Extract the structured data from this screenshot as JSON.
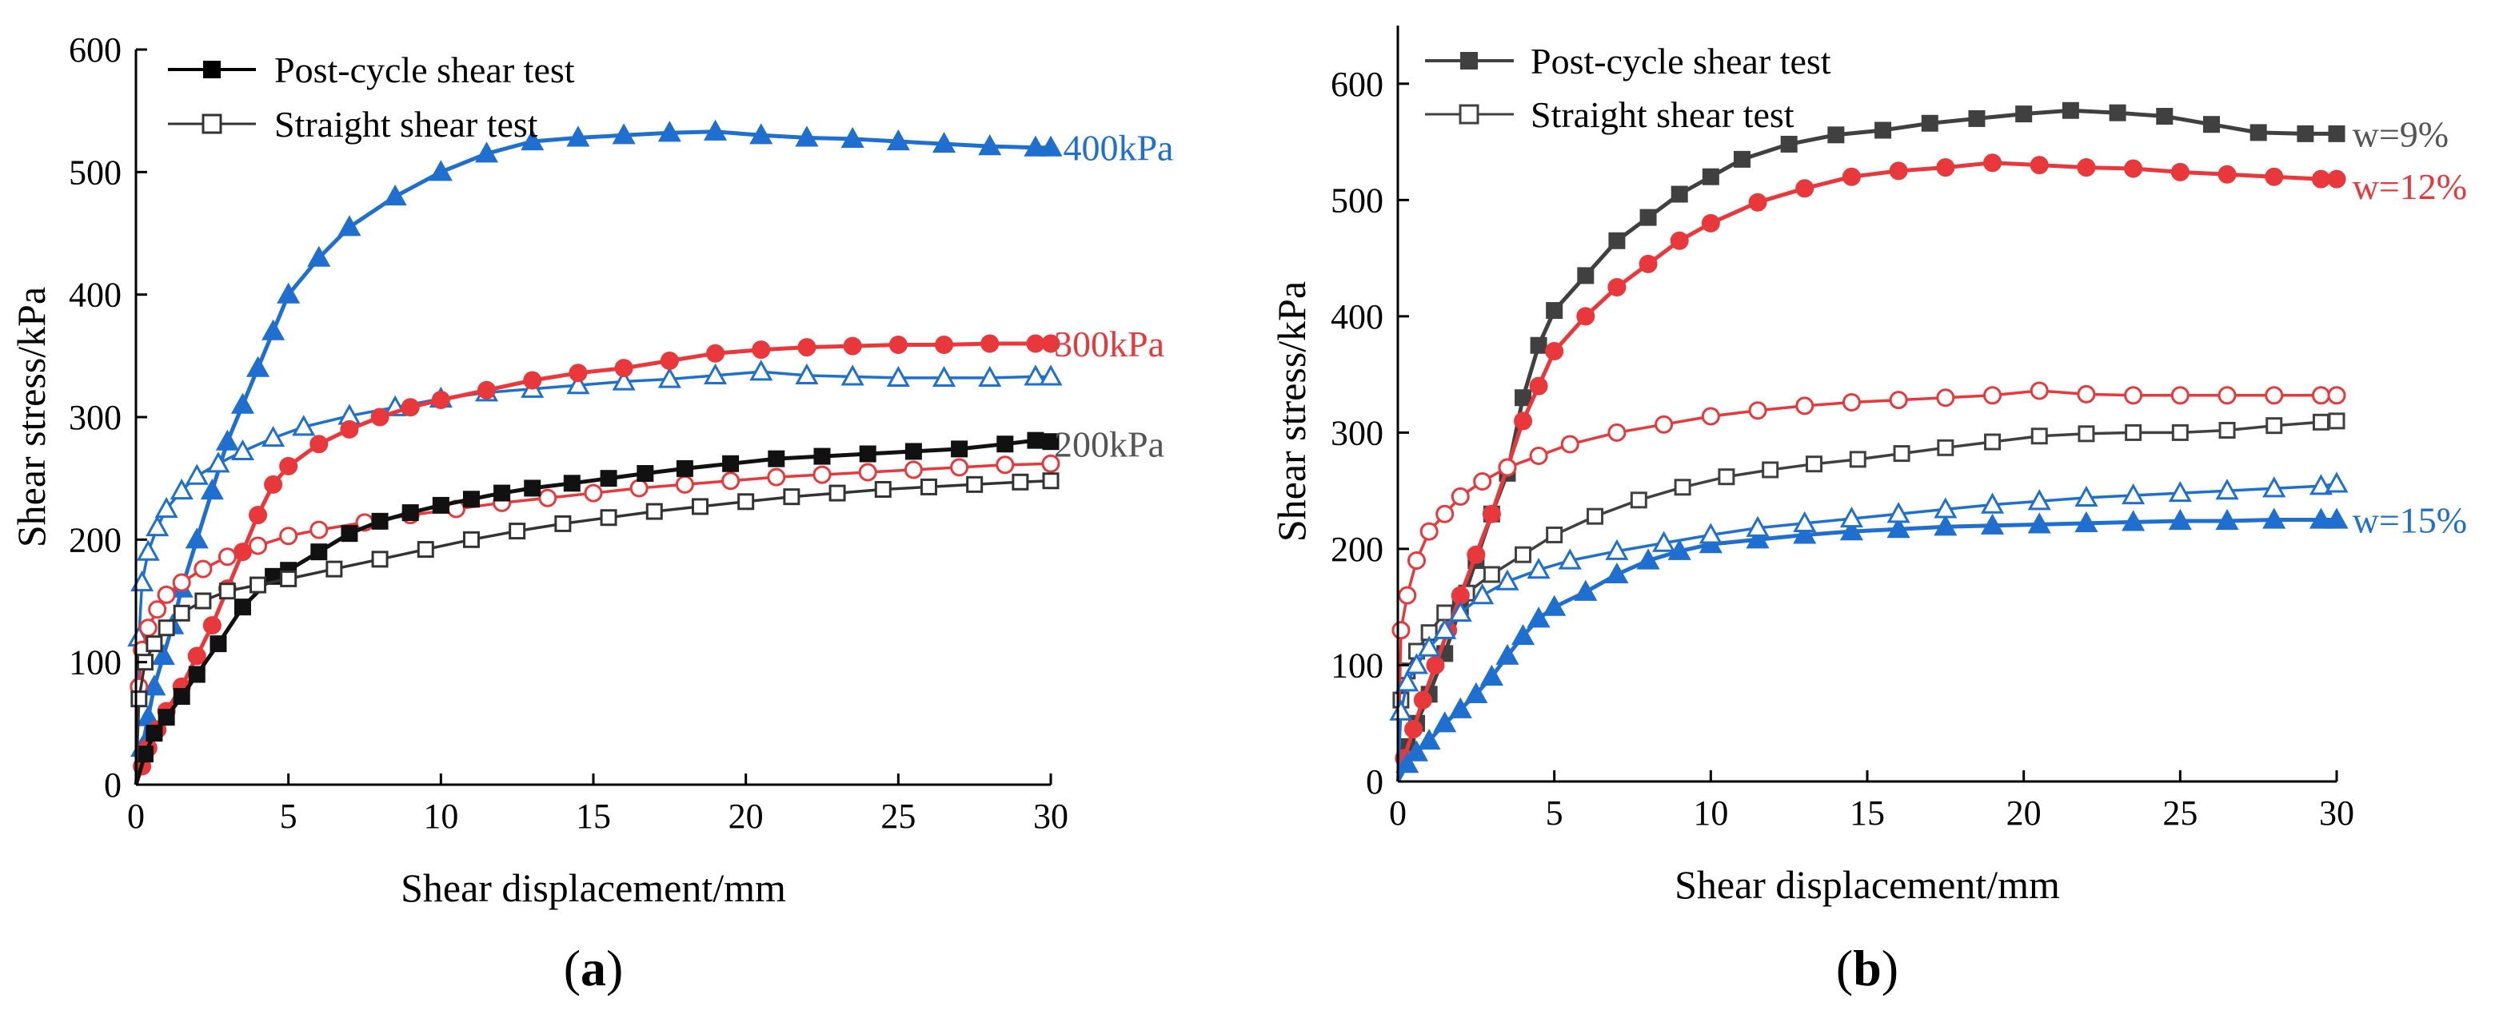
{
  "charts": [
    {
      "panel": "a",
      "panel_label_text": "a",
      "xlabel": "Shear displacement/mm",
      "ylabel": "Shear stress/kPa",
      "xlim": [
        0,
        30
      ],
      "ylim": [
        0,
        600
      ],
      "xticks": [
        0,
        5,
        10,
        15,
        20,
        25,
        30
      ],
      "yticks": [
        0,
        100,
        200,
        300,
        400,
        500,
        600
      ],
      "legend": [
        {
          "label": "Post-cycle shear test",
          "marker": "filled-square",
          "color": "#000000"
        },
        {
          "label": "Straight shear test",
          "marker": "open-square",
          "color": "#333333"
        }
      ],
      "annotations": [
        {
          "text": "400kPa",
          "x": 30.3,
          "y": 520,
          "color": "#1f6fd0"
        },
        {
          "text": "300kPa",
          "x": 30.0,
          "y": 360,
          "color": "#e8383b"
        },
        {
          "text": "200kPa",
          "x": 30.0,
          "y": 278,
          "color": "#555555"
        }
      ]
    },
    {
      "panel": "b",
      "panel_label_text": "b",
      "xlabel": "Shear displacement/mm",
      "ylabel": "Shear stress/kPa",
      "xlim": [
        0,
        30
      ],
      "ylim": [
        0,
        650
      ],
      "xticks": [
        0,
        5,
        10,
        15,
        20,
        25,
        30
      ],
      "yticks": [
        0,
        100,
        200,
        300,
        400,
        500,
        600
      ],
      "legend": [
        {
          "label": "Post-cycle shear test",
          "marker": "filled-square",
          "color": "#404040"
        },
        {
          "label": "Straight shear test",
          "marker": "open-square",
          "color": "#404040"
        }
      ],
      "annotations": [
        {
          "text": "w=9%",
          "x": 30.4,
          "y": 557,
          "color": "#555555"
        },
        {
          "text": "w=12%",
          "x": 30.4,
          "y": 512,
          "color": "#e8383b"
        },
        {
          "text": "w=15%",
          "x": 30.4,
          "y": 225,
          "color": "#1f6fd0"
        }
      ]
    }
  ],
  "chart_data": [
    {
      "type": "line",
      "panel": "a",
      "title": "",
      "xlabel": "Shear displacement/mm",
      "ylabel": "Shear stress/kPa",
      "xlim": [
        0,
        30
      ],
      "ylim": [
        0,
        600
      ],
      "series": [
        {
          "name": "400kPa post-cycle shear test",
          "color": "#1f6fd0",
          "marker": "filled-triangle",
          "x": [
            0,
            0.2,
            0.4,
            0.6,
            0.9,
            1.2,
            1.5,
            2,
            2.5,
            3,
            3.5,
            4,
            4.5,
            5,
            6,
            7,
            8.5,
            10,
            11.5,
            13,
            14.5,
            16,
            17.5,
            19,
            20.5,
            22,
            23.5,
            25,
            26.5,
            28,
            29.5,
            30
          ],
          "y": [
            0,
            30,
            55,
            80,
            105,
            130,
            160,
            200,
            240,
            280,
            310,
            340,
            370,
            400,
            430,
            455,
            480,
            500,
            515,
            525,
            528,
            530,
            532,
            533,
            530,
            528,
            527,
            525,
            523,
            521,
            520,
            520
          ]
        },
        {
          "name": "400kPa straight shear test",
          "color": "#1f6fd0",
          "marker": "open-triangle",
          "x": [
            0,
            0.1,
            0.2,
            0.4,
            0.7,
            1,
            1.5,
            2,
            2.7,
            3.5,
            4.5,
            5.5,
            7,
            8.5,
            10,
            11.5,
            13,
            14.5,
            16,
            17.5,
            19,
            20.5,
            22,
            23.5,
            25,
            26.5,
            28,
            29.5,
            30
          ],
          "y": [
            0,
            120,
            165,
            190,
            210,
            225,
            240,
            252,
            262,
            272,
            283,
            292,
            301,
            308,
            315,
            320,
            323,
            326,
            329,
            331,
            334,
            337,
            334,
            333,
            332,
            332,
            332,
            333,
            333
          ]
        },
        {
          "name": "300kPa post-cycle shear test",
          "color": "#e8383b",
          "marker": "filled-circle",
          "x": [
            0,
            0.2,
            0.4,
            0.7,
            1,
            1.5,
            2,
            2.5,
            3,
            3.5,
            4,
            4.5,
            5,
            6,
            7,
            8,
            9,
            10,
            11.5,
            13,
            14.5,
            16,
            17.5,
            19,
            20.5,
            22,
            23.5,
            25,
            26.5,
            28,
            29.5,
            30
          ],
          "y": [
            0,
            15,
            30,
            45,
            60,
            80,
            105,
            130,
            160,
            190,
            220,
            245,
            260,
            278,
            290,
            300,
            308,
            314,
            322,
            330,
            336,
            340,
            346,
            352,
            355,
            357,
            358,
            359,
            359,
            360,
            360,
            360
          ]
        },
        {
          "name": "300kPa straight shear test",
          "color": "#e8383b",
          "marker": "open-circle",
          "x": [
            0,
            0.1,
            0.2,
            0.4,
            0.7,
            1,
            1.5,
            2.2,
            3,
            4,
            5,
            6,
            7.5,
            9,
            10.5,
            12,
            13.5,
            15,
            16.5,
            18,
            19.5,
            21,
            22.5,
            24,
            25.5,
            27,
            28.5,
            30
          ],
          "y": [
            0,
            80,
            110,
            128,
            143,
            155,
            165,
            176,
            186,
            195,
            203,
            208,
            214,
            220,
            225,
            230,
            234,
            238,
            242,
            245,
            248,
            251,
            253,
            255,
            257,
            259,
            261,
            262
          ]
        },
        {
          "name": "200kPa post-cycle shear test",
          "color": "#111111",
          "marker": "filled-square",
          "x": [
            0,
            0.3,
            0.6,
            1,
            1.5,
            2,
            2.7,
            3.5,
            4.5,
            5,
            6,
            7,
            8,
            9,
            10,
            11,
            12,
            13,
            14.3,
            15.5,
            16.7,
            18,
            19.5,
            21,
            22.5,
            24,
            25.5,
            27,
            28.5,
            29.5,
            30
          ],
          "y": [
            0,
            25,
            42,
            55,
            72,
            90,
            115,
            145,
            170,
            175,
            190,
            205,
            215,
            222,
            228,
            233,
            238,
            242,
            246,
            250,
            254,
            258,
            262,
            266,
            268,
            270,
            272,
            274,
            278,
            281,
            280
          ]
        },
        {
          "name": "200kPa straight shear test",
          "color": "#333333",
          "marker": "open-square",
          "x": [
            0,
            0.1,
            0.3,
            0.6,
            1,
            1.5,
            2.2,
            3,
            4,
            5,
            6.5,
            8,
            9.5,
            11,
            12.5,
            14,
            15.5,
            17,
            18.5,
            20,
            21.5,
            23,
            24.5,
            26,
            27.5,
            29,
            30
          ],
          "y": [
            0,
            70,
            100,
            115,
            128,
            140,
            150,
            158,
            163,
            168,
            176,
            184,
            192,
            200,
            207,
            213,
            218,
            223,
            227,
            231,
            235,
            238,
            241,
            243,
            245,
            247,
            248
          ]
        }
      ]
    },
    {
      "type": "line",
      "panel": "b",
      "title": "",
      "xlabel": "Shear displacement/mm",
      "ylabel": "Shear stress/kPa",
      "xlim": [
        0,
        30
      ],
      "ylim": [
        0,
        650
      ],
      "series": [
        {
          "name": "w=9% post-cycle shear test",
          "color": "#404040",
          "marker": "filled-square",
          "x": [
            0,
            0.3,
            0.6,
            1,
            1.5,
            2,
            2.5,
            3,
            3.5,
            4,
            4.5,
            5,
            6,
            7,
            8,
            9,
            10,
            11,
            12.5,
            14,
            15.5,
            17,
            18.5,
            20,
            21.5,
            23,
            24.5,
            26,
            27.5,
            29,
            30
          ],
          "y": [
            0,
            30,
            50,
            75,
            110,
            150,
            190,
            230,
            265,
            330,
            375,
            405,
            435,
            465,
            485,
            505,
            520,
            535,
            548,
            556,
            560,
            566,
            570,
            574,
            577,
            575,
            572,
            565,
            558,
            557,
            557
          ]
        },
        {
          "name": "w=9% straight shear test",
          "color": "#404040",
          "marker": "open-square",
          "x": [
            0,
            0.1,
            0.3,
            0.6,
            1,
            1.5,
            2.2,
            3,
            4,
            5,
            6.3,
            7.7,
            9.1,
            10.5,
            11.9,
            13.3,
            14.7,
            16.1,
            17.5,
            19,
            20.5,
            22,
            23.5,
            25,
            26.5,
            28,
            29.5,
            30
          ],
          "y": [
            0,
            70,
            95,
            112,
            128,
            145,
            162,
            178,
            195,
            212,
            228,
            242,
            253,
            262,
            268,
            273,
            277,
            282,
            287,
            292,
            297,
            299,
            300,
            300,
            302,
            306,
            309,
            310
          ]
        },
        {
          "name": "w=12% post-cycle shear test",
          "color": "#e8383b",
          "marker": "filled-circle",
          "x": [
            0,
            0.2,
            0.5,
            0.8,
            1.2,
            1.6,
            2,
            2.5,
            3,
            3.5,
            4,
            4.5,
            5,
            6,
            7,
            8,
            9,
            10,
            11.5,
            13,
            14.5,
            16,
            17.5,
            19,
            20.5,
            22,
            23.5,
            25,
            26.5,
            28,
            29.5,
            30
          ],
          "y": [
            0,
            20,
            45,
            70,
            100,
            130,
            160,
            195,
            230,
            270,
            310,
            340,
            370,
            400,
            425,
            445,
            465,
            480,
            498,
            510,
            520,
            525,
            528,
            532,
            530,
            528,
            527,
            524,
            522,
            520,
            518,
            518
          ]
        },
        {
          "name": "w=12% straight shear test",
          "color": "#e8383b",
          "marker": "open-circle",
          "x": [
            0,
            0.1,
            0.3,
            0.6,
            1,
            1.5,
            2,
            2.7,
            3.5,
            4.5,
            5.5,
            7,
            8.5,
            10,
            11.5,
            13,
            14.5,
            16,
            17.5,
            19,
            20.5,
            22,
            23.5,
            25,
            26.5,
            28,
            29.5,
            30
          ],
          "y": [
            0,
            130,
            160,
            190,
            215,
            230,
            245,
            258,
            270,
            280,
            290,
            300,
            307,
            314,
            319,
            323,
            326,
            328,
            330,
            332,
            336,
            333,
            332,
            332,
            332,
            332,
            332,
            332
          ]
        },
        {
          "name": "w=15% post-cycle shear test",
          "color": "#1f6fd0",
          "marker": "filled-triangle",
          "x": [
            0,
            0.3,
            0.6,
            1,
            1.5,
            2,
            2.5,
            3,
            3.5,
            4,
            4.5,
            5,
            6,
            7,
            8,
            9,
            10,
            11.5,
            13,
            14.5,
            16,
            17.5,
            19,
            20.5,
            22,
            23.5,
            25,
            26.5,
            28,
            29.5,
            30
          ],
          "y": [
            0,
            15,
            25,
            35,
            50,
            62,
            75,
            90,
            108,
            125,
            140,
            150,
            163,
            178,
            190,
            198,
            204,
            208,
            212,
            215,
            217,
            219,
            220,
            221,
            222,
            223,
            224,
            224,
            225,
            225,
            225
          ]
        },
        {
          "name": "w=15% straight shear test",
          "color": "#1f6fd0",
          "marker": "open-triangle",
          "x": [
            0,
            0.1,
            0.3,
            0.6,
            1,
            1.5,
            2,
            2.7,
            3.5,
            4.5,
            5.5,
            7,
            8.5,
            10,
            11.5,
            13,
            14.5,
            16,
            17.5,
            19,
            20.5,
            22,
            23.5,
            25,
            26.5,
            28,
            29.5,
            30
          ],
          "y": [
            0,
            60,
            85,
            100,
            115,
            130,
            145,
            160,
            172,
            182,
            190,
            198,
            205,
            212,
            218,
            222,
            226,
            230,
            234,
            238,
            241,
            244,
            246,
            248,
            250,
            252,
            254,
            256
          ]
        }
      ]
    }
  ]
}
